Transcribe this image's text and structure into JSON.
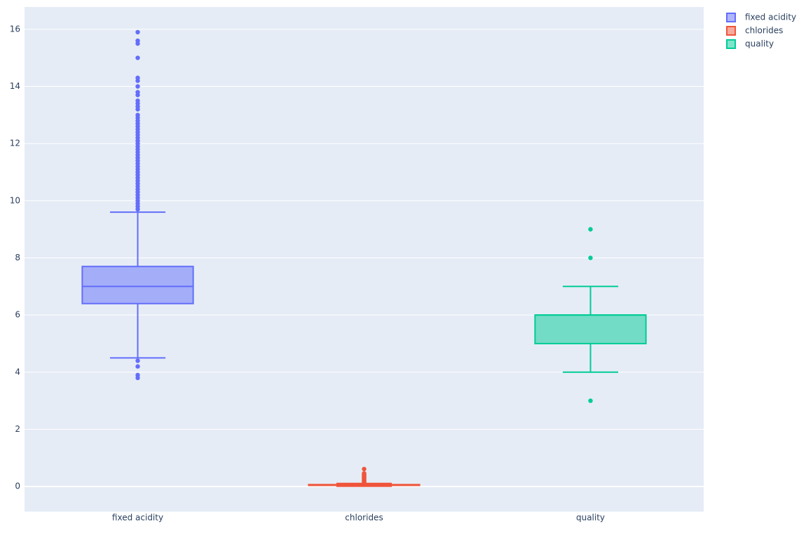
{
  "chart_data": {
    "type": "box",
    "categories": [
      "fixed acidity",
      "chlorides",
      "quality"
    ],
    "series": [
      {
        "name": "fixed acidity",
        "color": "#636efa",
        "lowerfence": 4.5,
        "q1": 6.4,
        "median": 7.0,
        "q3": 7.7,
        "upperfence": 9.6,
        "outliers": [
          3.8,
          3.9,
          4.2,
          4.4,
          9.7,
          9.8,
          9.9,
          10.0,
          10.1,
          10.2,
          10.3,
          10.4,
          10.5,
          10.6,
          10.7,
          10.8,
          10.9,
          11.0,
          11.1,
          11.2,
          11.3,
          11.4,
          11.5,
          11.6,
          11.7,
          11.8,
          11.9,
          12.0,
          12.1,
          12.2,
          12.3,
          12.4,
          12.5,
          12.6,
          12.7,
          12.8,
          12.9,
          13.0,
          13.2,
          13.3,
          13.4,
          13.5,
          13.7,
          13.8,
          14.0,
          14.2,
          14.3,
          15.0,
          15.5,
          15.6,
          15.9
        ]
      },
      {
        "name": "chlorides",
        "color": "#EF553B",
        "lowerfence": 0.009,
        "q1": 0.038,
        "median": 0.047,
        "q3": 0.065,
        "upperfence": 0.105,
        "outliers": [
          0.11,
          0.12,
          0.14,
          0.16,
          0.18,
          0.2,
          0.22,
          0.24,
          0.26,
          0.28,
          0.3,
          0.32,
          0.34,
          0.36,
          0.38,
          0.4,
          0.42,
          0.44,
          0.46,
          0.61
        ]
      },
      {
        "name": "quality",
        "color": "#00cc96",
        "lowerfence": 4,
        "q1": 5,
        "median": 6,
        "q3": 6,
        "upperfence": 7,
        "outliers": [
          3,
          8,
          9
        ]
      }
    ],
    "ylim": [
      -0.88,
      16.78
    ],
    "yticks": [
      0,
      2,
      4,
      6,
      8,
      10,
      12,
      14,
      16
    ],
    "grid": true
  }
}
